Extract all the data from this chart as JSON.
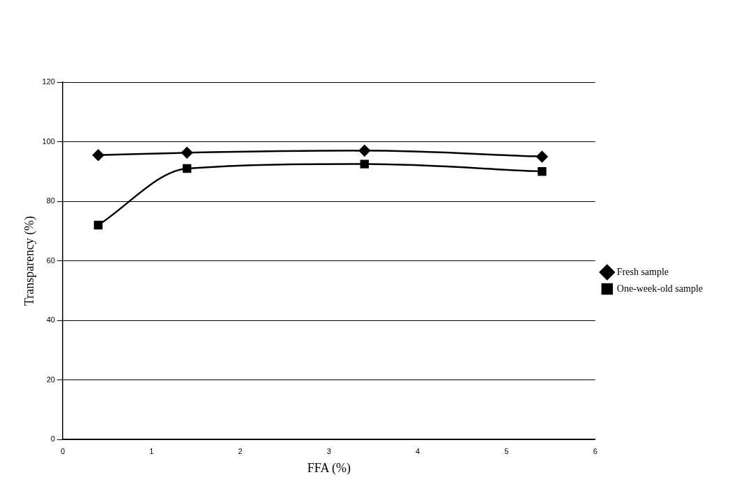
{
  "chart_data": {
    "type": "line",
    "xlabel": "FFA (%)",
    "ylabel": "Transparency (%)",
    "x": [
      0.4,
      1.4,
      3.4,
      5.4
    ],
    "series": [
      {
        "name": "Fresh sample",
        "color": "#000000",
        "marker": "diamond",
        "values": [
          95.5,
          96.3,
          97,
          95
        ]
      },
      {
        "name": "One-week-old sample",
        "color": "#000000",
        "marker": "square",
        "values": [
          72,
          91,
          92.5,
          90
        ]
      }
    ],
    "xlim": [
      0,
      6
    ],
    "xticks": [
      0,
      1,
      2,
      3,
      4,
      5,
      6
    ],
    "ylim": [
      0,
      120
    ],
    "yticks": [
      0,
      20,
      40,
      60,
      80,
      100,
      120
    ],
    "grid": "y",
    "legend": "right",
    "line_style": "solid"
  }
}
